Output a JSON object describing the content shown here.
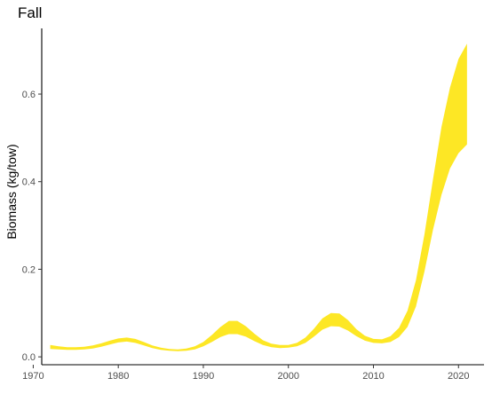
{
  "chart_data": {
    "type": "area",
    "title": "Fall",
    "xlabel": "",
    "ylabel": "Biomass (kg/tow)",
    "xlim": [
      1971,
      2023
    ],
    "ylim": [
      -0.018,
      0.75
    ],
    "x_ticks": [
      "1970",
      "1980",
      "1990",
      "2000",
      "2010",
      "2020"
    ],
    "y_ticks": [
      "0.0",
      "0.2",
      "0.4",
      "0.6"
    ],
    "grid": false,
    "fill_color": "#FDE725",
    "series": [
      {
        "x": [
          1972,
          1973,
          1974,
          1975,
          1976,
          1977,
          1978,
          1979,
          1980,
          1981,
          1982,
          1983,
          1984,
          1985,
          1986,
          1987,
          1988,
          1989,
          1990,
          1991,
          1992,
          1993,
          1994,
          1995,
          1996,
          1997,
          1998,
          1999,
          2000,
          2001,
          2002,
          2003,
          2004,
          2005,
          2006,
          2007,
          2008,
          2009,
          2010,
          2011,
          2012,
          2013,
          2014,
          2015,
          2016,
          2017,
          2018,
          2019,
          2020,
          2021
        ],
        "lower": [
          0.018,
          0.017,
          0.016,
          0.016,
          0.017,
          0.019,
          0.023,
          0.028,
          0.033,
          0.035,
          0.032,
          0.026,
          0.02,
          0.016,
          0.014,
          0.013,
          0.014,
          0.017,
          0.024,
          0.034,
          0.045,
          0.052,
          0.052,
          0.046,
          0.036,
          0.027,
          0.022,
          0.02,
          0.021,
          0.024,
          0.032,
          0.046,
          0.062,
          0.07,
          0.069,
          0.06,
          0.047,
          0.037,
          0.032,
          0.031,
          0.034,
          0.045,
          0.068,
          0.115,
          0.195,
          0.29,
          0.37,
          0.43,
          0.465,
          0.485
        ],
        "upper": [
          0.027,
          0.024,
          0.022,
          0.022,
          0.023,
          0.026,
          0.031,
          0.037,
          0.042,
          0.044,
          0.041,
          0.034,
          0.026,
          0.021,
          0.018,
          0.017,
          0.019,
          0.024,
          0.034,
          0.05,
          0.068,
          0.082,
          0.082,
          0.07,
          0.053,
          0.038,
          0.03,
          0.027,
          0.027,
          0.032,
          0.044,
          0.064,
          0.088,
          0.1,
          0.099,
          0.084,
          0.063,
          0.048,
          0.041,
          0.04,
          0.047,
          0.066,
          0.105,
          0.175,
          0.28,
          0.405,
          0.525,
          0.615,
          0.68,
          0.715
        ]
      }
    ]
  }
}
